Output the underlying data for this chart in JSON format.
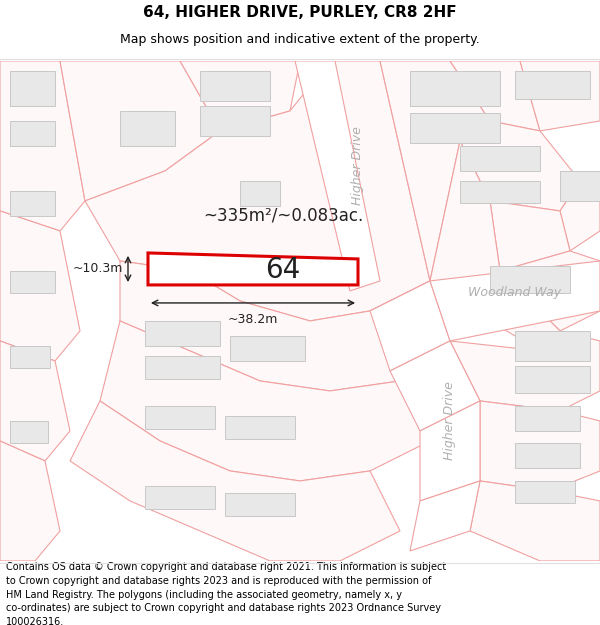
{
  "title": "64, HIGHER DRIVE, PURLEY, CR8 2HF",
  "subtitle": "Map shows position and indicative extent of the property.",
  "footer": "Contains OS data © Crown copyright and database right 2021. This information is subject\nto Crown copyright and database rights 2023 and is reproduced with the permission of\nHM Land Registry. The polygons (including the associated geometry, namely x, y\nco-ordinates) are subject to Crown copyright and database rights 2023 Ordnance Survey\n100026316.",
  "map_bg": "#ffffff",
  "building_fill": "#e8e8e8",
  "building_edge": "#c8c8c8",
  "road_fill": "#ffffff",
  "lot_stroke": "#f0a0a0",
  "road_stroke": "#c0c0c0",
  "highlight_fill": "#ffffff",
  "highlight_edge": "#dd0000",
  "area_text": "~335m²/~0.083ac.",
  "plot_label": "64",
  "dim_width": "~38.2m",
  "dim_height": "~10.3m",
  "road1_label": "Higher Drive",
  "road2_label": "Higher Drive",
  "road3_label": "Woodland Way",
  "title_fontsize": 11,
  "subtitle_fontsize": 9,
  "footer_fontsize": 7.0,
  "road_label_color": "#b0b0b0",
  "road_label_size": 9
}
